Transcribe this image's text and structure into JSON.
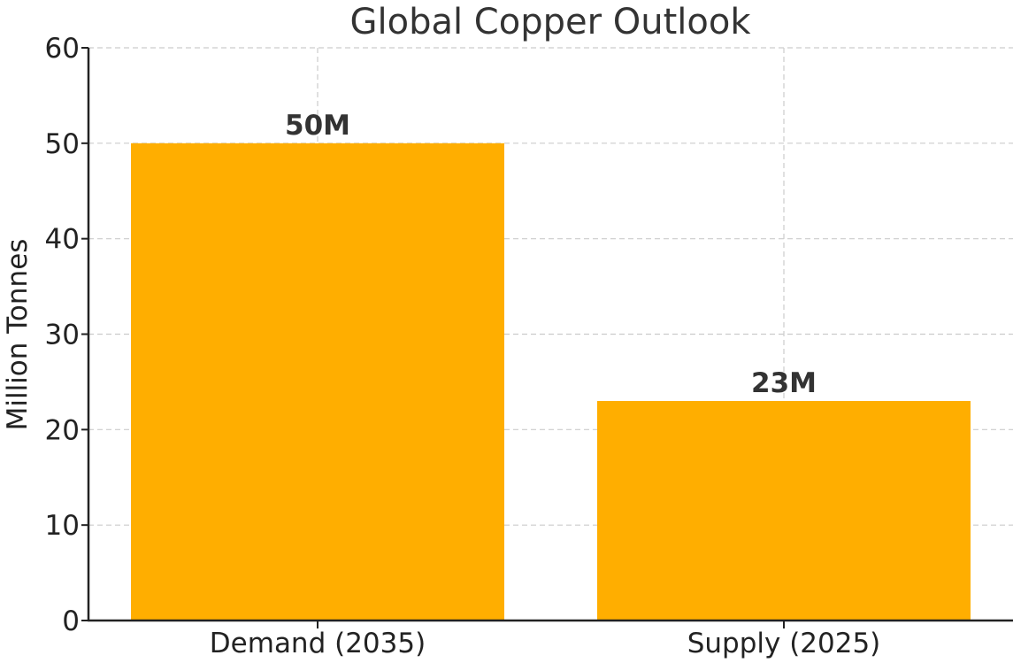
{
  "chart_data": {
    "type": "bar",
    "title": "Global Copper Outlook",
    "xlabel": "",
    "ylabel": "Million Tonnes",
    "categories": [
      "Demand (2035)",
      "Supply (2025)"
    ],
    "values": [
      50,
      23
    ],
    "data_labels": [
      "50M",
      "23M"
    ],
    "ylim": [
      0,
      60
    ],
    "yticks": [
      0,
      10,
      20,
      30,
      40,
      50,
      60
    ],
    "ytick_labels": [
      "0",
      "10",
      "20",
      "30",
      "40",
      "50",
      "60"
    ],
    "grid": true,
    "legend": "none",
    "colors": {
      "bar": "#FFAE00"
    }
  }
}
